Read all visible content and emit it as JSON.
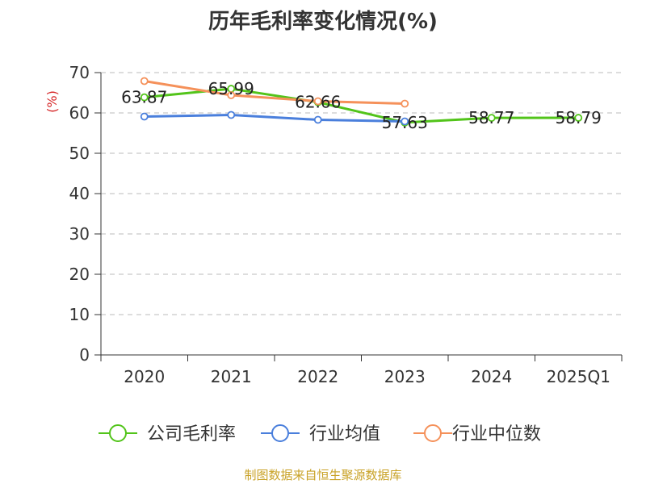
{
  "chart_data": {
    "type": "line",
    "title": "历年毛利率变化情况(%)",
    "ylabel": "(%)",
    "xlabel": "",
    "categories": [
      "2020",
      "2021",
      "2022",
      "2023",
      "2024",
      "2025Q1"
    ],
    "ylim": [
      0,
      70
    ],
    "yticks": [
      0,
      10,
      20,
      30,
      40,
      50,
      60,
      70
    ],
    "grid": true,
    "legend_position": "bottom",
    "series": [
      {
        "name": "公司毛利率",
        "color": "#52c41a",
        "values": [
          63.87,
          65.99,
          62.66,
          57.63,
          58.77,
          58.79
        ],
        "show_labels": true
      },
      {
        "name": "行业均值",
        "color": "#4a7fdc",
        "values": [
          59.1,
          59.5,
          58.3,
          57.9,
          null,
          null
        ],
        "show_labels": false
      },
      {
        "name": "行业中位数",
        "color": "#f5915a",
        "values": [
          67.9,
          64.4,
          62.9,
          62.3,
          null,
          null
        ],
        "show_labels": false
      }
    ],
    "source": "制图数据来自恒生聚源数据库"
  }
}
